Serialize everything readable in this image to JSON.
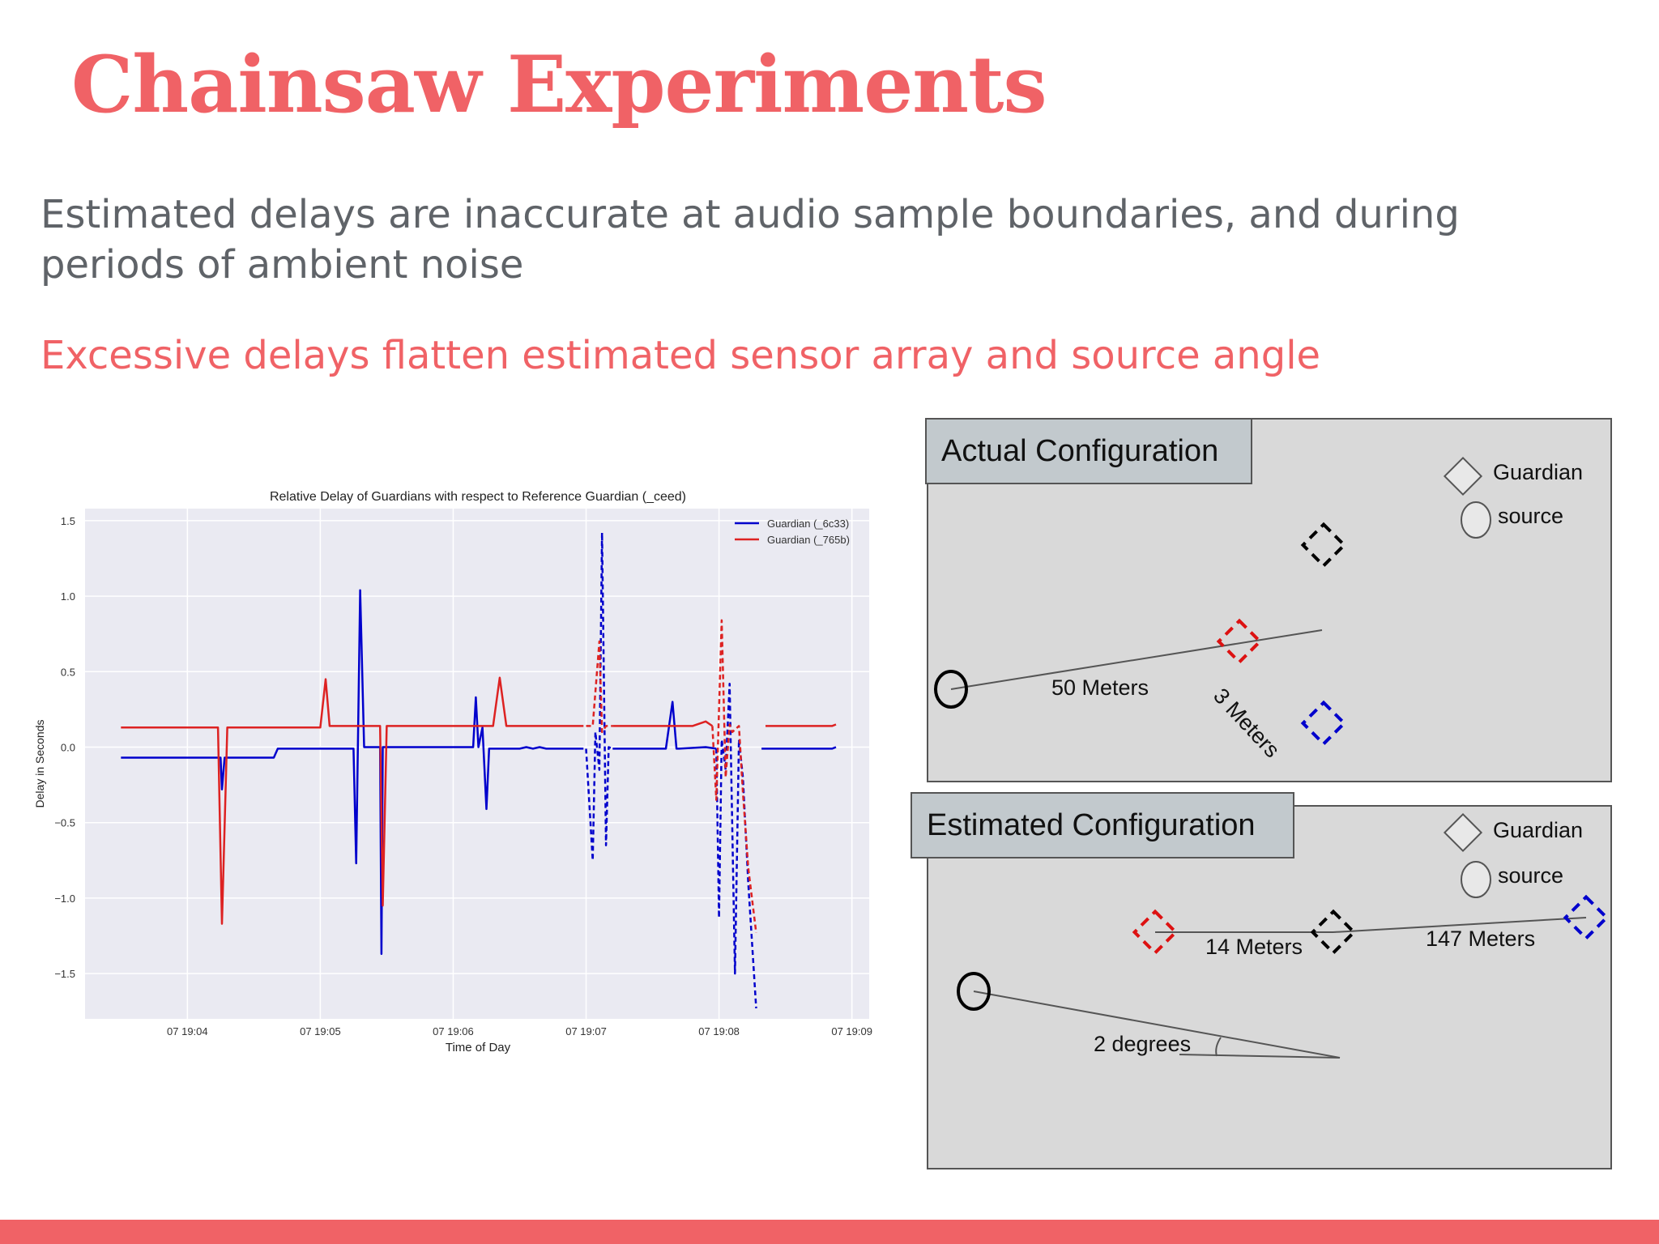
{
  "slide": {
    "title": "Chainsaw Experiments",
    "body": "Estimated delays are inaccurate at audio sample boundaries, and during periods of ambient noise",
    "subhead": "Excessive delays flatten estimated sensor array and source angle"
  },
  "colors": {
    "accent": "#f06266",
    "body_text": "#5f6368",
    "series_blue": "#0000cc",
    "series_red": "#dd2222"
  },
  "chart_data": {
    "type": "line",
    "title": "Relative Delay of Guardians with respect to Reference Guardian (_ceed)",
    "xlabel": "Time of Day",
    "ylabel": "Delay in Seconds",
    "x_ticks": [
      "07 19:04",
      "07 19:05",
      "07 19:06",
      "07 19:07",
      "07 19:08",
      "07 19:09"
    ],
    "x_tick_values": [
      4,
      5,
      6,
      7,
      8,
      9
    ],
    "y_ticks": [
      "1.5",
      "1.0",
      "0.5",
      "0.0",
      "−0.5",
      "−1.0",
      "−1.5"
    ],
    "y_tick_values": [
      1.5,
      1.0,
      0.5,
      0.0,
      -0.5,
      -1.0,
      -1.5
    ],
    "xlim": [
      3.23,
      9.13
    ],
    "ylim": [
      -1.8,
      1.58
    ],
    "legend_position": "top-right",
    "grid": true,
    "series": [
      {
        "name": "Guardian (_6c33)",
        "color": "#0000cc",
        "segments": [
          {
            "dashed": false,
            "x": [
              3.5,
              4.1,
              4.25,
              4.26,
              4.28,
              4.3,
              4.65,
              4.68,
              4.72,
              5.0,
              5.25,
              5.27,
              5.3,
              5.33,
              5.35,
              5.45,
              5.46,
              5.47,
              5.5,
              6.15,
              6.17,
              6.19,
              6.22,
              6.25,
              6.27,
              6.3,
              6.5,
              6.55,
              6.6,
              6.65,
              6.7,
              6.98
            ],
            "y": [
              -0.07,
              -0.07,
              -0.07,
              -0.28,
              -0.07,
              -0.07,
              -0.07,
              -0.01,
              -0.01,
              -0.01,
              -0.01,
              -0.77,
              1.04,
              0.0,
              0.0,
              0.0,
              -1.37,
              0.0,
              0.0,
              0.0,
              0.33,
              0.0,
              0.13,
              -0.41,
              -0.01,
              -0.01,
              -0.01,
              0.0,
              -0.01,
              0.0,
              -0.01,
              -0.01
            ]
          },
          {
            "dashed": true,
            "x": [
              7.0,
              7.05,
              7.07,
              7.1,
              7.12,
              7.15,
              7.17,
              7.2
            ],
            "y": [
              -0.01,
              -0.75,
              0.1,
              -0.15,
              1.42,
              -0.65,
              0.0,
              -0.01
            ]
          },
          {
            "dashed": false,
            "x": [
              7.2,
              7.6,
              7.65,
              7.68,
              7.7,
              7.9,
              7.98
            ],
            "y": [
              -0.01,
              -0.01,
              0.3,
              -0.01,
              -0.01,
              0.0,
              -0.01
            ]
          },
          {
            "dashed": true,
            "x": [
              7.98,
              8.0,
              8.02,
              8.05,
              8.08,
              8.12,
              8.15,
              8.18,
              8.22,
              8.28
            ],
            "y": [
              -0.01,
              -1.13,
              0.05,
              -0.15,
              0.42,
              -1.5,
              0.05,
              -0.2,
              -0.9,
              -1.73
            ]
          },
          {
            "dashed": false,
            "x": [
              8.32,
              8.85,
              8.88
            ],
            "y": [
              -0.01,
              -0.01,
              0.0
            ]
          }
        ]
      },
      {
        "name": "Guardian (_765b)",
        "color": "#dd2222",
        "segments": [
          {
            "dashed": false,
            "x": [
              3.5,
              4.23,
              4.26,
              4.3,
              5.0,
              5.04,
              5.07,
              5.1,
              5.45,
              5.47,
              5.5,
              6.3,
              6.35,
              6.4,
              6.98
            ],
            "y": [
              0.13,
              0.13,
              -1.17,
              0.13,
              0.13,
              0.45,
              0.14,
              0.14,
              0.14,
              -1.05,
              0.14,
              0.14,
              0.46,
              0.14,
              0.14
            ]
          },
          {
            "dashed": true,
            "x": [
              7.0,
              7.05,
              7.1,
              7.12,
              7.15,
              7.2
            ],
            "y": [
              0.14,
              0.14,
              0.7,
              0.1,
              0.14,
              0.14
            ]
          },
          {
            "dashed": false,
            "x": [
              7.2,
              7.8,
              7.9,
              7.95
            ],
            "y": [
              0.14,
              0.14,
              0.17,
              0.14
            ]
          },
          {
            "dashed": true,
            "x": [
              7.95,
              7.98,
              8.02,
              8.05,
              8.08,
              8.1,
              8.15,
              8.18,
              8.22,
              8.28
            ],
            "y": [
              0.14,
              -0.35,
              0.84,
              -0.2,
              0.15,
              0.1,
              0.14,
              -0.3,
              -0.8,
              -1.23
            ]
          },
          {
            "dashed": false,
            "x": [
              8.35,
              8.85,
              8.88
            ],
            "y": [
              0.14,
              0.14,
              0.15
            ]
          }
        ]
      }
    ]
  },
  "actual_config": {
    "header": "Actual Configuration",
    "legend": {
      "guardian": "Guardian",
      "source": "source"
    },
    "labels": {
      "distance_source": "50 Meters",
      "distance_array": "3 Meters"
    }
  },
  "estimated_config": {
    "header": "Estimated Configuration",
    "legend": {
      "guardian": "Guardian",
      "source": "source"
    },
    "labels": {
      "distance_red_black": "14 Meters",
      "distance_black_blue": "147 Meters",
      "angle": "2 degrees"
    }
  }
}
